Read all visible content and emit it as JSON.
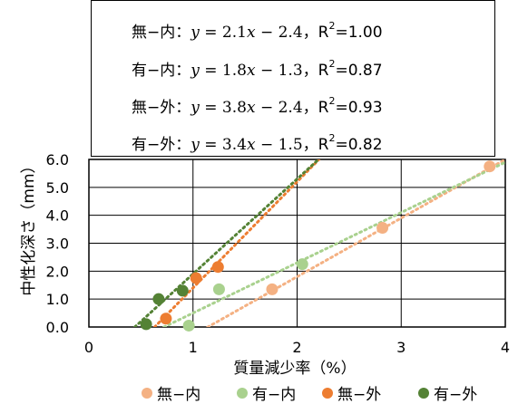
{
  "equations": [
    {
      "series": "無−内",
      "sep": "：",
      "lhs": "y",
      "eq": " = 2.1",
      "var": "x",
      "rest": " − 2.4",
      "comma": "，",
      "r2label": "R",
      "r2sup": "2",
      "r2val": "=1.00"
    },
    {
      "series": "有−内",
      "sep": "：",
      "lhs": "y",
      "eq": " = 1.8",
      "var": "x",
      "rest": " − 1.3",
      "comma": "，",
      "r2label": "R",
      "r2sup": "2",
      "r2val": "=0.87"
    },
    {
      "series": "無−外",
      "sep": "：",
      "lhs": "y",
      "eq": " = 3.8",
      "var": "x",
      "rest": " − 2.4",
      "comma": "，",
      "r2label": "R",
      "r2sup": "2",
      "r2val": "=0.93"
    },
    {
      "series": "有−外",
      "sep": "：",
      "lhs": "y",
      "eq": " = 3.4",
      "var": "x",
      "rest": " − 1.5",
      "comma": "，",
      "r2label": "R",
      "r2sup": "2",
      "r2val": "=0.82"
    }
  ],
  "chart_data": {
    "type": "scatter",
    "xlabel": "質量減少率（%）",
    "ylabel": "中性化深さ（mm）",
    "xlim": [
      0,
      4
    ],
    "ylim": [
      0,
      6
    ],
    "xticks": [
      0,
      1,
      2,
      3,
      4
    ],
    "xtick_labels": [
      "0",
      "1",
      "2",
      "3",
      "4"
    ],
    "yticks": [
      0,
      1,
      2,
      3,
      4,
      5,
      6
    ],
    "ytick_labels": [
      "0.0",
      "1.0",
      "2.0",
      "3.0",
      "4.0",
      "5.0",
      "6.0"
    ],
    "grid": true,
    "legend_position": "bottom",
    "series": [
      {
        "name": "無−内",
        "color": "#f4b183",
        "points": [
          [
            1.76,
            1.35
          ],
          [
            2.82,
            3.55
          ],
          [
            3.85,
            5.75
          ]
        ],
        "trend": {
          "slope": 2.1,
          "intercept": -2.4,
          "x_range": [
            1.14,
            4.0
          ]
        }
      },
      {
        "name": "有−内",
        "color": "#a9d18e",
        "points": [
          [
            0.96,
            0.05
          ],
          [
            1.25,
            1.35
          ],
          [
            2.05,
            2.25
          ]
        ],
        "trend": {
          "slope": 1.8,
          "intercept": -1.3,
          "x_range": [
            0.72,
            4.0
          ]
        }
      },
      {
        "name": "無−外",
        "color": "#ed7d31",
        "points": [
          [
            0.74,
            0.3
          ],
          [
            1.03,
            1.75
          ],
          [
            1.24,
            2.15
          ]
        ],
        "trend": {
          "slope": 3.8,
          "intercept": -2.4,
          "x_range": [
            0.63,
            2.21
          ]
        }
      },
      {
        "name": "有−外",
        "color": "#548235",
        "points": [
          [
            0.55,
            0.1
          ],
          [
            0.67,
            1.0
          ],
          [
            0.9,
            1.3
          ]
        ],
        "trend": {
          "slope": 3.4,
          "intercept": -1.5,
          "x_range": [
            0.44,
            2.21
          ]
        }
      }
    ]
  }
}
